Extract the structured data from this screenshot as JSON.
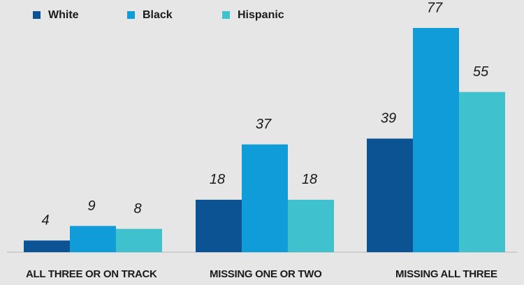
{
  "chart_data": {
    "type": "bar",
    "categories": [
      "ALL THREE OR ON TRACK",
      "MISSING ONE OR TWO",
      "MISSING ALL THREE"
    ],
    "series": [
      {
        "name": "White",
        "color": "#0b5393",
        "values": [
          4,
          18,
          39
        ]
      },
      {
        "name": "Black",
        "color": "#109bd9",
        "values": [
          9,
          37,
          77
        ]
      },
      {
        "name": "Hispanic",
        "color": "#3fc1ce",
        "values": [
          8,
          18,
          55
        ]
      }
    ],
    "legend": "top-left"
  }
}
